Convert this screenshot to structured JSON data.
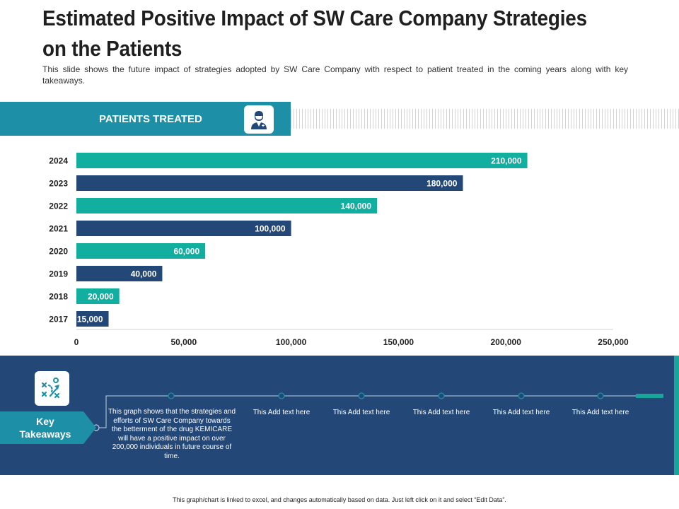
{
  "title": "Estimated Positive Impact of SW Care Company Strategies on the Patients",
  "subtitle": "This slide shows the future impact of strategies adopted by SW Care Company with respect to patient treated in the coming years along with key takeaways.",
  "header": {
    "label": "PATIENTS TREATED",
    "icon": "doctor-icon"
  },
  "chart_data": {
    "type": "bar",
    "orientation": "horizontal",
    "title": "PATIENTS TREATED",
    "categories": [
      "2024",
      "2023",
      "2022",
      "2021",
      "2020",
      "2019",
      "2018",
      "2017"
    ],
    "values": [
      210000,
      180000,
      140000,
      100000,
      60000,
      40000,
      20000,
      15000
    ],
    "value_labels": [
      "210,000",
      "180,000",
      "140,000",
      "100,000",
      "60,000",
      "40,000",
      "20,000",
      "15,000"
    ],
    "xlim": [
      0,
      250000
    ],
    "x_ticks": [
      0,
      50000,
      100000,
      150000,
      200000,
      250000
    ],
    "x_tick_labels": [
      "0",
      "50,000",
      "100,000",
      "150,000",
      "200,000",
      "250,000"
    ],
    "colors": [
      "#12ae9f",
      "#234878"
    ],
    "xlabel": "",
    "ylabel": "",
    "grid": false,
    "legend": "none"
  },
  "takeaways": {
    "label": "Key\nTakeaways",
    "icon": "strategy-icon",
    "items": [
      "This graph shows that the strategies and efforts of SW Care Company towards the betterment of the drug KEMICARE   will have a positive impact on over 200,000 individuals in future course of time.",
      "This Add text here",
      "This Add text here",
      "This Add text here",
      "This Add text here",
      "This Add text here"
    ]
  },
  "colors": {
    "accent": "#1d8fa6",
    "teal": "#12ae9f",
    "navy": "#234878"
  },
  "footnote": "This graph/chart is linked to excel, and changes automatically based on data. Just left click on it and select “Edit Data”."
}
